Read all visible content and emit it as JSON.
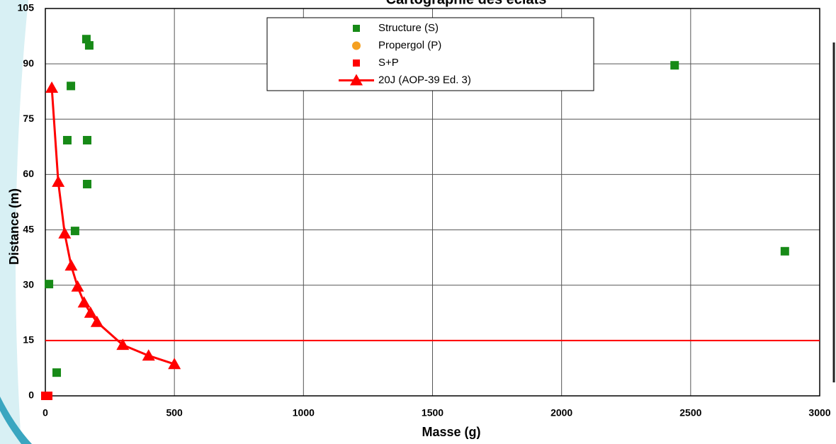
{
  "chart_data": {
    "type": "scatter",
    "title": "Cartographie des éclats",
    "xlabel": "Masse (g)",
    "ylabel": "Distance (m)",
    "xlim": [
      0,
      3000
    ],
    "xticks": [
      0,
      500,
      1000,
      1500,
      2000,
      2500,
      3000
    ],
    "ylim": [
      0,
      105
    ],
    "yticks": [
      0,
      15,
      30,
      45,
      60,
      75,
      90,
      105
    ],
    "grid": true,
    "reference_line": 15,
    "reference_color": "#ff0000",
    "series": [
      {
        "name": "Structure (S)",
        "color": "#178a17",
        "marker": "square",
        "type": "scatter",
        "x": [
          159,
          170,
          99,
          85,
          162,
          162,
          115,
          14,
          44,
          2438,
          2865
        ],
        "values": [
          96.7,
          95,
          84,
          69.3,
          69.3,
          57.4,
          44.7,
          30.3,
          6.3,
          89.6,
          39.2
        ]
      },
      {
        "name": "Propergol (P)",
        "color": "#f5a020",
        "marker": "circle",
        "type": "scatter",
        "x": [],
        "values": []
      },
      {
        "name": "S+P",
        "color": "#ff0000",
        "marker": "square",
        "type": "scatter",
        "x": [
          0,
          11
        ],
        "values": [
          0,
          0
        ]
      },
      {
        "name": "20J (AOP-39 Ed. 3)",
        "color": "#ff0000",
        "marker": "triangle",
        "type": "line",
        "x": [
          25,
          50,
          75,
          100,
          125,
          150,
          175,
          200,
          300,
          400,
          500
        ],
        "values": [
          83.5,
          58,
          44,
          35.3,
          29.6,
          25.3,
          22.5,
          20,
          13.8,
          10.9,
          8.6
        ]
      }
    ]
  }
}
